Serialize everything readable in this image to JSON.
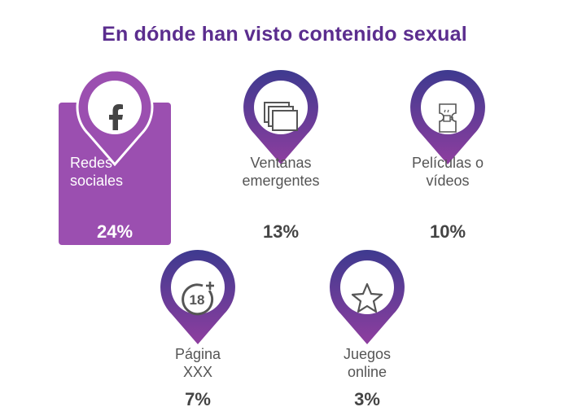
{
  "title": "En dónde han visto contenido sexual",
  "colors": {
    "title": "#5b2d8e",
    "card": "#9b4fb0",
    "pin_top": "#3e3a8f",
    "pin_bottom": "#8e3e9f"
  },
  "items": [
    {
      "label_line1": "Redes",
      "label_line2": "sociales",
      "percent": "24%",
      "icon": "facebook-icon"
    },
    {
      "label_line1": "Ventanas",
      "label_line2": "emergentes",
      "percent": "13%",
      "icon": "popup-windows-icon"
    },
    {
      "label_line1": "Películas o",
      "label_line2": "vídeos",
      "percent": "10%",
      "icon": "film-ticket-icon"
    },
    {
      "label_line1": "Página",
      "label_line2": "XXX",
      "percent": "7%",
      "icon": "adult-18-plus-icon"
    },
    {
      "label_line1": "Juegos",
      "label_line2": "online",
      "percent": "3%",
      "icon": "star-icon"
    }
  ]
}
